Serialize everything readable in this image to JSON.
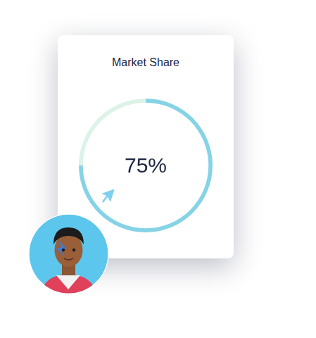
{
  "chart_data": {
    "type": "doughnut",
    "title": "Market Share",
    "values": [
      75
    ],
    "value_labels": [
      "75%"
    ],
    "ylim": [
      0,
      100
    ],
    "data_labels": true,
    "color": "#86d3e6"
  }
}
